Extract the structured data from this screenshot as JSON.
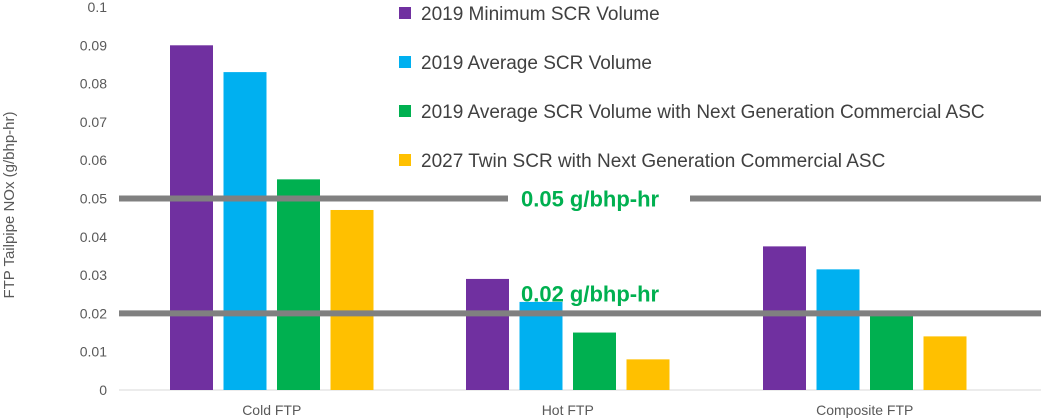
{
  "chart_data": {
    "type": "bar",
    "ylabel": "FTP Tailpipe NOx (g/bhp-hr)",
    "xlabel": "",
    "ylim": [
      0,
      0.1
    ],
    "yticks": [
      "0",
      "0.01",
      "0.02",
      "0.03",
      "0.04",
      "0.05",
      "0.06",
      "0.07",
      "0.08",
      "0.09",
      "0.1"
    ],
    "categories": [
      "Cold FTP",
      "Hot FTP",
      "Composite FTP"
    ],
    "series": [
      {
        "name": "2019 Minimum SCR Volume",
        "color": "#7030A0",
        "values": [
          0.09,
          0.029,
          0.0375
        ]
      },
      {
        "name": "2019 Average SCR Volume",
        "color": "#00B0F0",
        "values": [
          0.083,
          0.023,
          0.0315
        ]
      },
      {
        "name": "2019 Average SCR Volume with Next Generation Commercial ASC",
        "color": "#00B050",
        "values": [
          0.055,
          0.015,
          0.02
        ]
      },
      {
        "name": "2027 Twin SCR with Next Generation Commercial ASC",
        "color": "#FFC000",
        "values": [
          0.047,
          0.008,
          0.014
        ]
      }
    ],
    "grid": false,
    "legend": "top-center",
    "reference_lines": [
      {
        "value": 0.05,
        "label": "0.05 g/bhp-hr",
        "color": "#808080",
        "label_color": "#00B050"
      },
      {
        "value": 0.02,
        "label": "0.02 g/bhp-hr",
        "color": "#808080",
        "label_color": "#00B050"
      }
    ]
  }
}
